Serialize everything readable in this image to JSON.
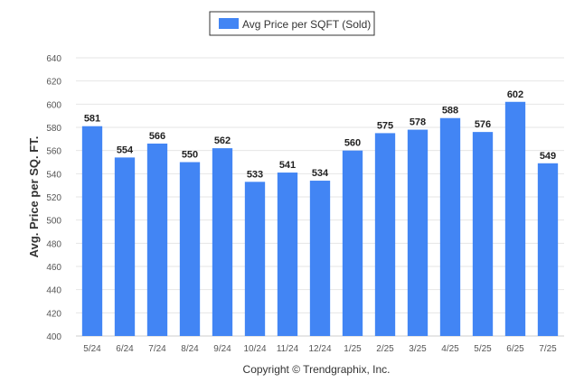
{
  "chart_data": {
    "type": "bar",
    "categories": [
      "5/24",
      "6/24",
      "7/24",
      "8/24",
      "9/24",
      "10/24",
      "11/24",
      "12/24",
      "1/25",
      "2/25",
      "3/25",
      "4/25",
      "5/25",
      "6/25",
      "7/25"
    ],
    "series": [
      {
        "name": "Avg Price per SQFT (Sold)",
        "values": [
          581,
          554,
          566,
          550,
          562,
          533,
          541,
          534,
          560,
          575,
          578,
          588,
          576,
          602,
          549
        ]
      }
    ],
    "ylabel": "Avg. Price per SQ. FT.",
    "xlabel": "",
    "ylim": [
      400,
      640
    ],
    "yticks": [
      400,
      420,
      440,
      460,
      480,
      500,
      520,
      540,
      560,
      580,
      600,
      620,
      640
    ],
    "grid": true,
    "legend_position": "top-center",
    "data_labels": true,
    "colors": {
      "bar": "#4285f4",
      "grid": "#e6e6e6"
    }
  },
  "footer": {
    "copyright": "Copyright © Trendgraphix, Inc."
  }
}
